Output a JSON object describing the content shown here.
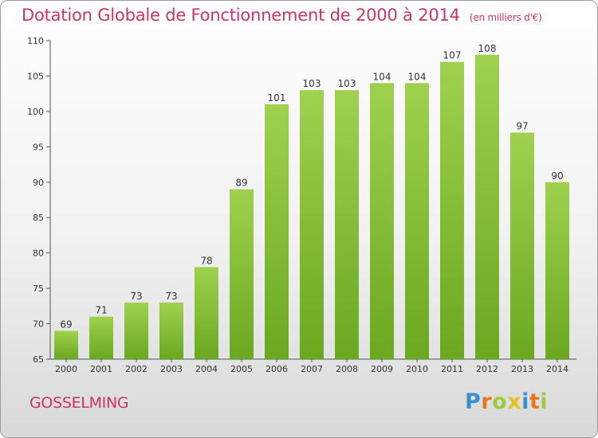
{
  "chart_data": {
    "type": "bar",
    "title": "Dotation Globale de Fonctionnement de 2000 à 2014",
    "unit_label": "(en milliers d'€)",
    "categories": [
      "2000",
      "2001",
      "2002",
      "2003",
      "2004",
      "2005",
      "2006",
      "2007",
      "2008",
      "2009",
      "2010",
      "2011",
      "2012",
      "2013",
      "2014"
    ],
    "values": [
      69,
      71,
      73,
      73,
      78,
      89,
      101,
      103,
      103,
      104,
      104,
      107,
      108,
      97,
      90
    ],
    "ylim": [
      65,
      110
    ],
    "yticks": [
      65,
      70,
      75,
      80,
      85,
      90,
      95,
      100,
      105,
      110
    ],
    "xlabel": "",
    "ylabel": "",
    "grid": false,
    "colors": {
      "bar_top": "#9fd14f",
      "bar_bottom": "#6aa820",
      "title": "#cc3366"
    }
  },
  "footer": {
    "commune": "GOSSELMING",
    "logo_text": "Proxiti",
    "logo_letters": [
      {
        "char": "P",
        "color": "#3a8fd0"
      },
      {
        "char": "r",
        "color": "#e87a1c"
      },
      {
        "char": "o",
        "color": "#9ccc3c"
      },
      {
        "char": "x",
        "color": "#e8c21c"
      },
      {
        "char": "i",
        "color": "#3a8fd0"
      },
      {
        "char": "t",
        "color": "#e87a1c"
      },
      {
        "char": "i",
        "color": "#9ccc3c"
      }
    ]
  }
}
